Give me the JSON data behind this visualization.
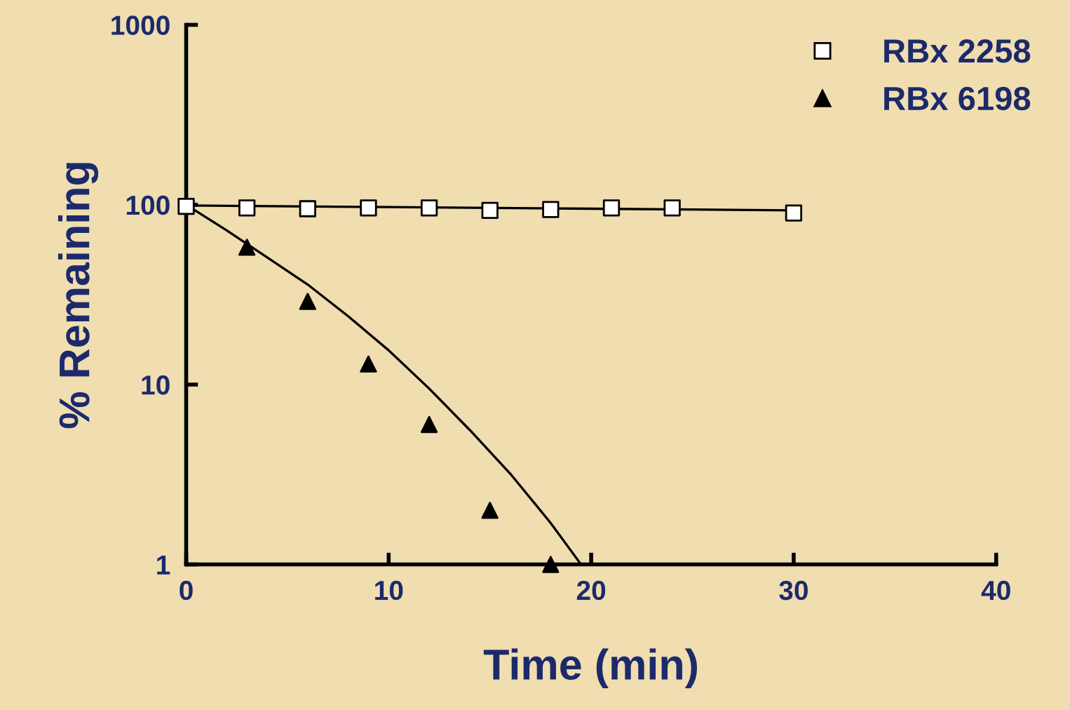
{
  "chart_data": {
    "type": "scatter",
    "xlabel": "Time (min)",
    "ylabel": "% Remaining",
    "log": "y",
    "xlim": [
      0,
      40
    ],
    "xticks": [
      0,
      10,
      20,
      30,
      40
    ],
    "ylim": [
      1,
      1000
    ],
    "yticks": [
      1,
      10,
      100,
      1000
    ],
    "grid": false,
    "legend": "top right",
    "series": [
      {
        "name": "RBx 2258",
        "marker": "square",
        "color": "#ffffff",
        "x": [
          0,
          3,
          6,
          9,
          12,
          15,
          18,
          21,
          24,
          30
        ],
        "values": [
          98,
          96,
          95,
          96,
          96,
          93,
          94,
          96,
          96,
          90
        ]
      },
      {
        "name": "RBx 6198",
        "marker": "triangle",
        "color": "#000000",
        "x": [
          3,
          6,
          9,
          12,
          15,
          18
        ],
        "values": [
          58,
          29,
          13,
          6,
          2,
          1
        ]
      },
      {
        "type": "line",
        "marker": "none",
        "color": "#000000",
        "x": [
          0,
          10,
          20,
          30
        ],
        "values": [
          99,
          97,
          95,
          93
        ]
      },
      {
        "type": "line",
        "marker": "none",
        "color": "#000000",
        "x": [
          0,
          2,
          4,
          6,
          8,
          10,
          12,
          14,
          16,
          18,
          19.5
        ],
        "values": [
          100,
          72,
          51,
          36,
          24,
          15.5,
          9.5,
          5.6,
          3.2,
          1.7,
          1
        ]
      }
    ]
  }
}
